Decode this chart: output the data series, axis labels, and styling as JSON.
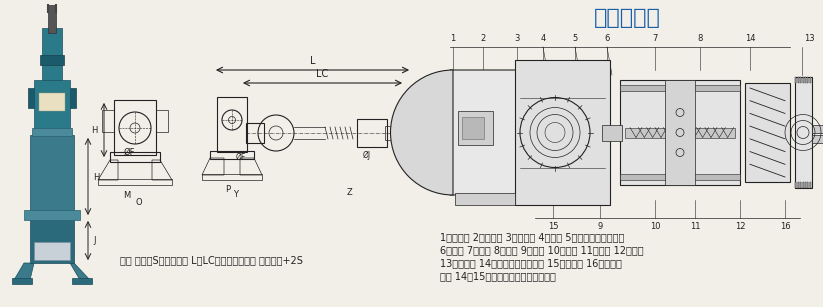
{
  "bg_color": "#f2efe9",
  "title_display": "〈结构图〉",
  "title_color": "#1a5fa8",
  "title_fontsize": 16,
  "note_left": "注： 图中的S表示行程； L、LC的最大尺寸为： 原有尺式+2S",
  "desc_line1": "1、电动机 2、小齿轮 3、大齿轮 4、滑座 5、过载保护安全开关",
  "desc_line2": "6、拨杆 7、螺杆 8、螺母 9、弹簧 10、导套 11、导轨 12、推杆",
  "desc_line3": "13、连接头 14、外接行程开关装置 15、支承架 16、防尘罩",
  "desc_line4": "注： 14、15需用户自备或订货时订购。",
  "desc_fontsize": 7,
  "note_fontsize": 7
}
